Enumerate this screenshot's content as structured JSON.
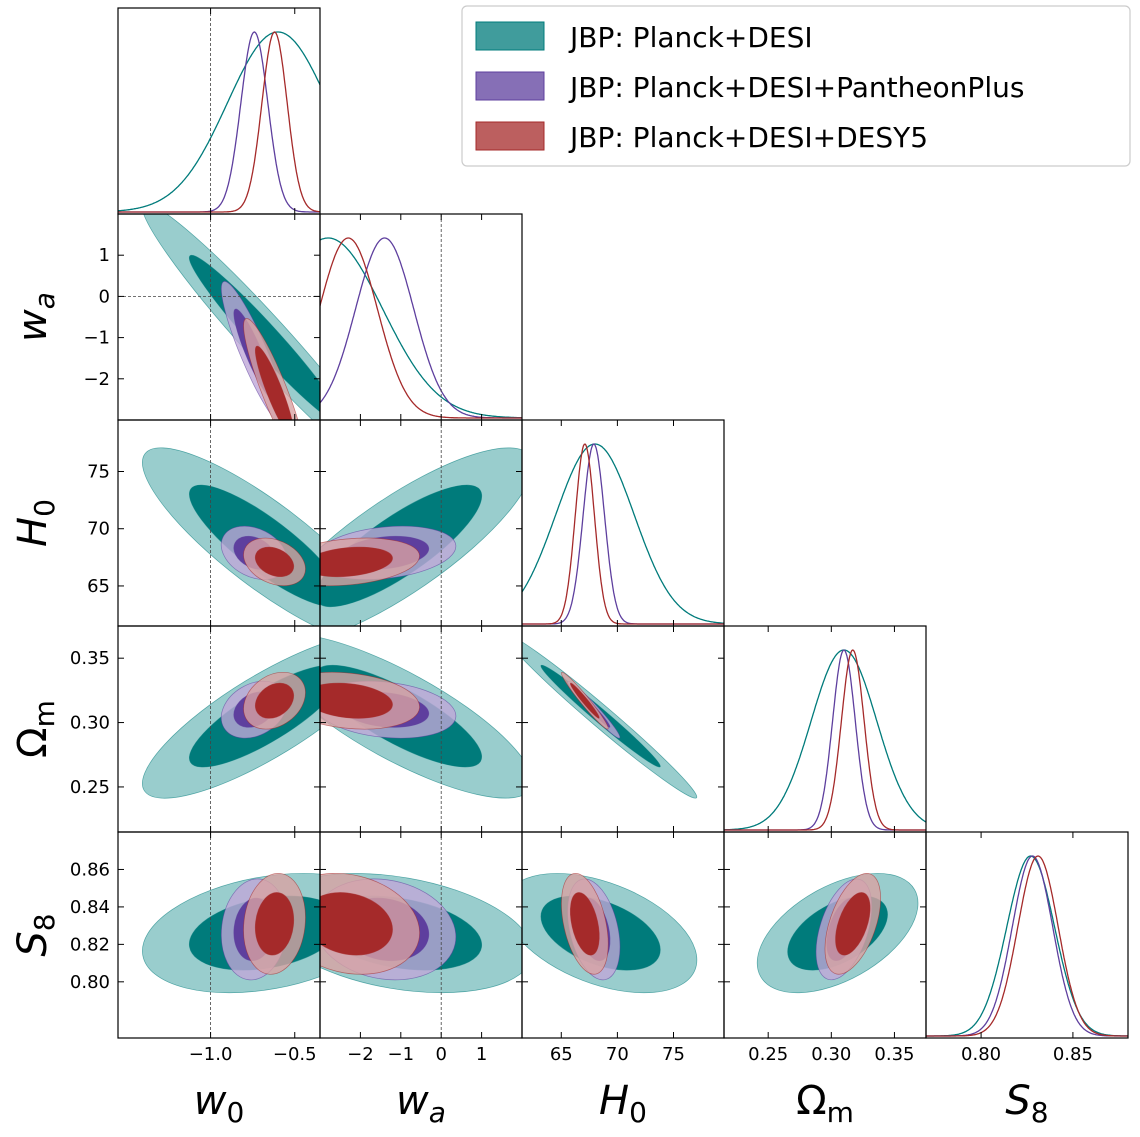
{
  "chart_data": {
    "type": "corner",
    "parameters": [
      {
        "key": "w0",
        "label": "w",
        "sub": "0",
        "sub_is_italic": false,
        "range": [
          -1.55,
          -0.35
        ],
        "ticks": [
          -1.0,
          -0.5
        ],
        "tick_labels": [
          "−1.0",
          "−0.5"
        ],
        "reference": -1.0
      },
      {
        "key": "wa",
        "label": "w",
        "sub": "a",
        "sub_is_italic": true,
        "range": [
          -3.0,
          2.0
        ],
        "ticks": [
          -2,
          -1,
          0,
          1
        ],
        "tick_labels": [
          "−2",
          "−1",
          "0",
          "1"
        ],
        "reference": 0
      },
      {
        "key": "H0",
        "label": "H",
        "sub": "0",
        "sub_is_italic": false,
        "range": [
          61.5,
          79.5
        ],
        "ticks": [
          65,
          70,
          75
        ],
        "tick_labels": [
          "65",
          "70",
          "75"
        ],
        "reference": null
      },
      {
        "key": "Om",
        "label": "Ω",
        "sub": "m",
        "sub_is_italic": false,
        "range": [
          0.215,
          0.375
        ],
        "ticks": [
          0.25,
          0.3,
          0.35
        ],
        "tick_labels": [
          "0.25",
          "0.30",
          "0.35"
        ],
        "reference": null
      },
      {
        "key": "S8",
        "label": "S",
        "sub": "8",
        "sub_is_italic": false,
        "range": [
          0.77,
          0.88
        ],
        "ticks": [
          0.8,
          0.85
        ],
        "tick_labels": [
          "0.80",
          "0.85"
        ],
        "reference": null
      }
    ],
    "y_ticks": {
      "wa": {
        "ticks": [
          1,
          0,
          -1,
          -2
        ],
        "tick_labels": [
          "1",
          "0",
          "−1",
          "−2"
        ]
      },
      "H0": {
        "ticks": [
          75,
          70,
          65
        ],
        "tick_labels": [
          "75",
          "70",
          "65"
        ]
      },
      "Om": {
        "ticks": [
          0.35,
          0.3,
          0.25
        ],
        "tick_labels": [
          "0.35",
          "0.30",
          "0.25"
        ]
      },
      "S8": {
        "ticks": [
          0.86,
          0.84,
          0.82,
          0.8
        ],
        "tick_labels": [
          "0.86",
          "0.84",
          "0.82",
          "0.80"
        ]
      }
    },
    "series": [
      {
        "name": "JBP: Planck+DESI",
        "color_inner": "#007b7b",
        "color_outer": "#7fc0c0",
        "means": {
          "w0": -0.67,
          "wa": -1.05,
          "H0": 68.5,
          "Om": 0.305,
          "S8": 0.826
        },
        "sigmas": {
          "w0": 0.3,
          "wa": 1.35,
          "H0": 3.5,
          "Om": 0.026,
          "S8": 0.013
        },
        "correlations": {
          "w0|wa": -0.97,
          "w0|H0": -0.85,
          "w0|Om": 0.82,
          "w0|S8": 0.3,
          "wa|H0": 0.82,
          "wa|Om": -0.8,
          "wa|S8": -0.32,
          "H0|Om": -0.985,
          "H0|S8": -0.45,
          "Om|S8": 0.5
        },
        "peaks": {
          "w0": -0.6,
          "wa": -2.8,
          "H0": 68.0,
          "Om": 0.31,
          "S8": 0.827
        }
      },
      {
        "name": "JBP: Planck+DESI+PantheonPlus",
        "color_inner": "#5e3f9e",
        "color_outer": "#bfa7d8",
        "means": {
          "w0": -0.74,
          "wa": -1.4,
          "H0": 67.9,
          "Om": 0.31,
          "S8": 0.828
        },
        "sigmas": {
          "w0": 0.08,
          "wa": 0.72,
          "H0": 0.95,
          "Om": 0.009,
          "S8": 0.011
        },
        "correlations": {
          "w0|wa": -0.9,
          "w0|H0": -0.3,
          "w0|Om": 0.28,
          "w0|S8": 0.1,
          "wa|H0": 0.25,
          "wa|Om": -0.22,
          "wa|S8": -0.15,
          "H0|Om": -0.97,
          "H0|S8": -0.35,
          "Om|S8": 0.45
        },
        "peaks": {
          "w0": -0.74,
          "wa": -1.4,
          "H0": 67.9,
          "Om": 0.31,
          "S8": 0.828
        }
      },
      {
        "name": "JBP: Planck+DESI+DESY5",
        "color_inner": "#a52a2a",
        "color_outer": "#d8a2a2",
        "means": {
          "w0": -0.62,
          "wa": -2.3,
          "H0": 67.1,
          "Om": 0.317,
          "S8": 0.831
        },
        "sigmas": {
          "w0": 0.075,
          "wa": 0.72,
          "H0": 0.85,
          "Om": 0.009,
          "S8": 0.011
        },
        "correlations": {
          "w0|wa": -0.9,
          "w0|H0": -0.3,
          "w0|Om": 0.28,
          "w0|S8": 0.12,
          "wa|H0": 0.25,
          "wa|Om": -0.22,
          "wa|S8": -0.18,
          "H0|Om": -0.97,
          "H0|S8": -0.4,
          "Om|S8": 0.5
        },
        "peaks": {
          "w0": -0.62,
          "wa": -2.3,
          "H0": 67.1,
          "Om": 0.317,
          "S8": 0.831
        }
      }
    ],
    "legend": {
      "placement": "top-right",
      "entries": [
        "JBP: Planck+DESI",
        "JBP: Planck+DESI+PantheonPlus",
        "JBP: Planck+DESI+DESY5"
      ]
    },
    "grid": false
  }
}
